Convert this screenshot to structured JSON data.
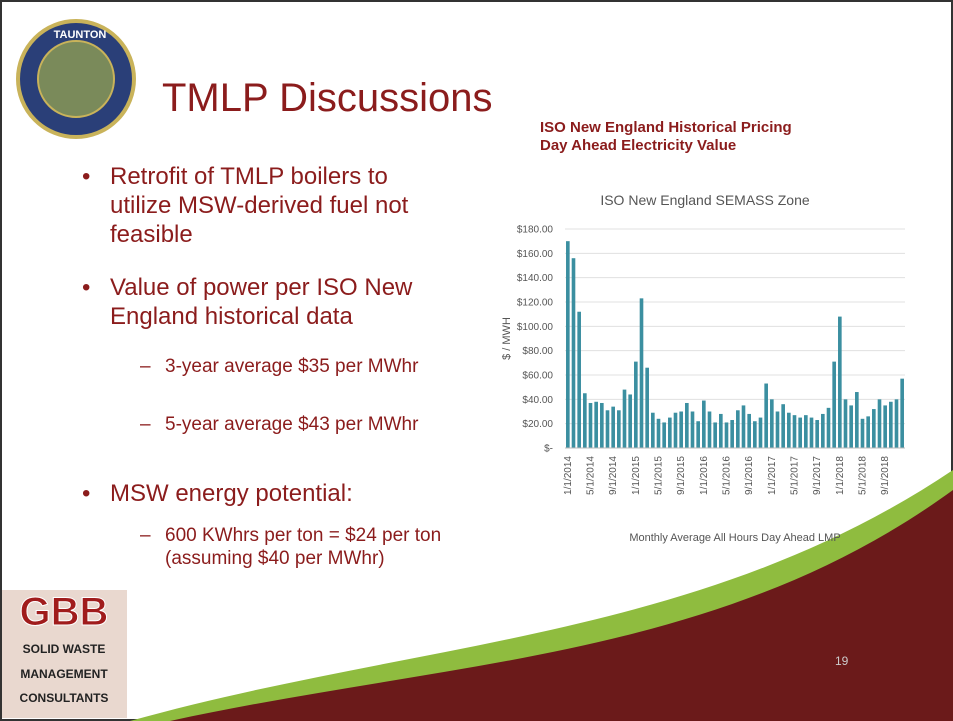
{
  "slide": {
    "title": "TMLP Discussions",
    "seal_text": "TAUNTON",
    "bullets": [
      {
        "text": "Retrofit of TMLP boilers to utilize MSW-derived fuel not feasible",
        "subs": []
      },
      {
        "text": "Value of power per ISO New England historical data",
        "subs": [
          "3-year average $35 per MWhr",
          "5-year average $43 per MWhr"
        ]
      },
      {
        "text": "MSW energy potential:",
        "subs": [
          "600 KWhrs per ton = $24 per ton (assuming $40 per MWhr)"
        ]
      }
    ],
    "chart_heading": [
      "ISO New England Historical Pricing",
      "Day Ahead Electricity Value"
    ],
    "logo": {
      "mark": "GBB",
      "lines": [
        "SOLID WASTE",
        "MANAGEMENT",
        "CONSULTANTS"
      ]
    },
    "page_number": "19"
  },
  "chart_data": {
    "type": "bar",
    "title": "ISO New England SEMASS Zone",
    "x_label": "Monthly Average All Hours Day Ahead LMP",
    "y_label": "$ / MWH",
    "color": "#3b8fa0",
    "categories": [
      "1/1/2014",
      null,
      null,
      null,
      "5/1/2014",
      null,
      null,
      null,
      "9/1/2014",
      null,
      null,
      null,
      "1/1/2015",
      null,
      null,
      null,
      "5/1/2015",
      null,
      null,
      null,
      "9/1/2015",
      null,
      null,
      null,
      "1/1/2016",
      null,
      null,
      null,
      "5/1/2016",
      null,
      null,
      null,
      "9/1/2016",
      null,
      null,
      null,
      "1/1/2017",
      null,
      null,
      null,
      "5/1/2017",
      null,
      null,
      null,
      "9/1/2017",
      null,
      null,
      null,
      "1/1/2018",
      null,
      null,
      null,
      "5/1/2018",
      null,
      null,
      null,
      "9/1/2018",
      null,
      null,
      null
    ],
    "values": [
      170,
      156,
      112,
      45,
      37,
      38,
      37,
      31,
      34,
      31,
      48,
      44,
      71,
      123,
      66,
      29,
      24,
      21,
      25,
      29,
      30,
      37,
      30,
      22,
      39,
      30,
      21,
      28,
      21,
      23,
      31,
      35,
      28,
      22,
      25,
      53,
      40,
      30,
      36,
      29,
      27,
      25,
      27,
      25,
      23,
      28,
      33,
      71,
      108,
      40,
      35,
      46,
      24,
      26,
      32,
      40,
      35,
      38,
      40,
      57
    ],
    "ylim": [
      0,
      180
    ],
    "yticks": [
      {
        "value": 0,
        "label": "$-"
      },
      {
        "value": 20,
        "label": "$20.00"
      },
      {
        "value": 40,
        "label": "$40.00"
      },
      {
        "value": 60,
        "label": "$60.00"
      },
      {
        "value": 80,
        "label": "$80.00"
      },
      {
        "value": 100,
        "label": "$100.00"
      },
      {
        "value": 120,
        "label": "$120.00"
      },
      {
        "value": 140,
        "label": "$140.00"
      },
      {
        "value": 160,
        "label": "$160.00"
      },
      {
        "value": 180,
        "label": "$180.00"
      }
    ],
    "grid": true
  }
}
